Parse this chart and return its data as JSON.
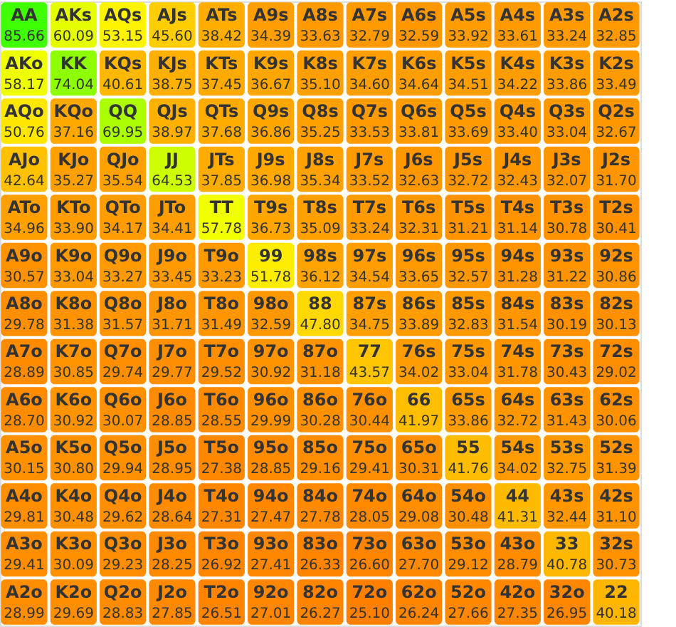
{
  "chart_data": {
    "type": "heatmap",
    "categories": [
      null,
      null,
      null,
      null,
      null,
      null,
      null,
      null,
      null,
      null,
      null,
      null,
      null
    ],
    "y_categories": [
      null,
      null,
      null,
      null,
      null,
      null,
      null,
      null,
      null,
      null,
      null,
      null,
      null
    ],
    "cells": [
      [
        85.66,
        60.09,
        53.15,
        45.6,
        38.42,
        34.39,
        33.63,
        32.79,
        32.59,
        33.92,
        33.61,
        33.24,
        32.85
      ],
      [
        58.17,
        74.04,
        40.61,
        38.75,
        37.45,
        36.67,
        35.1,
        34.6,
        34.64,
        34.51,
        34.22,
        33.86,
        33.49
      ],
      [
        50.76,
        37.16,
        69.95,
        38.97,
        37.68,
        36.86,
        35.25,
        33.53,
        33.81,
        33.69,
        33.4,
        33.04,
        32.67
      ],
      [
        42.64,
        35.27,
        35.54,
        64.53,
        37.85,
        36.98,
        35.34,
        33.52,
        32.63,
        32.72,
        32.43,
        32.07,
        31.7
      ],
      [
        34.96,
        33.9,
        34.17,
        34.41,
        57.78,
        36.73,
        35.09,
        33.24,
        32.31,
        31.21,
        31.14,
        30.78,
        30.41
      ],
      [
        30.57,
        33.04,
        33.27,
        33.45,
        33.23,
        51.78,
        36.12,
        34.54,
        33.65,
        32.57,
        31.28,
        31.22,
        30.86
      ],
      [
        29.78,
        31.38,
        31.57,
        31.71,
        31.49,
        32.59,
        47.8,
        34.75,
        33.89,
        32.83,
        31.54,
        30.19,
        30.13
      ],
      [
        28.89,
        30.85,
        29.74,
        29.77,
        29.52,
        30.92,
        31.18,
        43.57,
        34.02,
        33.04,
        31.78,
        30.43,
        29.02
      ],
      [
        28.7,
        30.92,
        30.07,
        28.85,
        28.55,
        29.99,
        30.28,
        30.44,
        41.97,
        33.86,
        32.72,
        31.43,
        30.06
      ],
      [
        30.15,
        30.8,
        29.94,
        28.95,
        27.38,
        28.85,
        29.16,
        29.41,
        30.31,
        41.76,
        34.02,
        32.75,
        31.39
      ],
      [
        29.81,
        30.48,
        29.62,
        28.64,
        27.31,
        27.47,
        27.78,
        28.05,
        29.08,
        30.48,
        41.31,
        32.44,
        31.1
      ],
      [
        29.41,
        30.09,
        29.23,
        28.25,
        26.92,
        27.41,
        26.33,
        26.6,
        27.7,
        29.12,
        28.79,
        40.78,
        30.73
      ],
      [
        28.99,
        29.69,
        28.83,
        27.85,
        26.51,
        27.01,
        26.27,
        25.1,
        26.24,
        27.66,
        27.35,
        26.95,
        40.18
      ]
    ],
    "cell_labels": [
      [
        "85.66",
        "60.09",
        "53.15",
        "45.60",
        "38.42",
        "34.39",
        "33.63",
        "32.79",
        "32.59",
        "33.92",
        "33.61",
        "33.24",
        "32.85"
      ],
      [
        "58.17",
        "74.04",
        "40.61",
        "38.75",
        "37.45",
        "36.67",
        "35.10",
        "34.60",
        "34.64",
        "34.51",
        "34.22",
        "33.86",
        "33.49"
      ],
      [
        "50.76",
        "37.16",
        "69.95",
        "38.97",
        "37.68",
        "36.86",
        "35.25",
        "33.53",
        "33.81",
        "33.69",
        "33.40",
        "33.04",
        "32.67"
      ],
      [
        "42.64",
        "35.27",
        "35.54",
        "64.53",
        "37.85",
        "36.98",
        "35.34",
        "33.52",
        "32.63",
        "32.72",
        "32.43",
        "32.07",
        "31.70"
      ],
      [
        "34.96",
        "33.90",
        "34.17",
        "34.41",
        "57.78",
        "36.73",
        "35.09",
        "33.24",
        "32.31",
        "31.21",
        "31.14",
        "30.78",
        "30.41"
      ],
      [
        "30.57",
        "33.04",
        "33.27",
        "33.45",
        "33.23",
        "51.78",
        "36.12",
        "34.54",
        "33.65",
        "32.57",
        "31.28",
        "31.22",
        "30.86"
      ],
      [
        "29.78",
        "31.38",
        "31.57",
        "31.71",
        "31.49",
        "32.59",
        "47.80",
        "34.75",
        "33.89",
        "32.83",
        "31.54",
        "30.19",
        "30.13"
      ],
      [
        "28.89",
        "30.85",
        "29.74",
        "29.77",
        "29.52",
        "30.92",
        "31.18",
        "43.57",
        "34.02",
        "33.04",
        "31.78",
        "30.43",
        "29.02"
      ],
      [
        "28.70",
        "30.92",
        "30.07",
        "28.85",
        "28.55",
        "29.99",
        "30.28",
        "30.44",
        "41.97",
        "33.86",
        "32.72",
        "31.43",
        "30.06"
      ],
      [
        "30.15",
        "30.80",
        "29.94",
        "28.95",
        "27.38",
        "28.85",
        "29.16",
        "29.41",
        "30.31",
        "41.76",
        "34.02",
        "32.75",
        "31.39"
      ],
      [
        "29.81",
        "30.48",
        "29.62",
        "28.64",
        "27.31",
        "27.47",
        "27.78",
        "28.05",
        "29.08",
        "30.48",
        "41.31",
        "32.44",
        "31.10"
      ],
      [
        "29.41",
        "30.09",
        "29.23",
        "28.25",
        "26.92",
        "27.41",
        "26.33",
        "26.60",
        "27.70",
        "29.12",
        "28.79",
        "40.78",
        "30.73"
      ],
      [
        "28.99",
        "29.69",
        "28.83",
        "27.85",
        "26.51",
        "27.01",
        "26.27",
        "25.10",
        "26.24",
        "27.66",
        "27.35",
        "26.95",
        "40.18"
      ]
    ],
    "data_labels": true,
    "annotations": [
      "AA",
      "AKs",
      "AQs",
      "AJs",
      "ATs",
      "A9s",
      "A8s",
      "A7s",
      "A6s",
      "A5s",
      "A4s",
      "A3s",
      "A2s",
      "AKo",
      "KK",
      "KQs",
      "KJs",
      "KTs",
      "K9s",
      "K8s",
      "K7s",
      "K6s",
      "K5s",
      "K4s",
      "K3s",
      "K2s",
      "AQo",
      "KQo",
      "QQ",
      "QJs",
      "QTs",
      "Q9s",
      "Q8s",
      "Q7s",
      "Q6s",
      "Q5s",
      "Q4s",
      "Q3s",
      "Q2s",
      "AJo",
      "KJo",
      "QJo",
      "JJ",
      "JTs",
      "J9s",
      "J8s",
      "J7s",
      "J6s",
      "J5s",
      "J4s",
      "J3s",
      "J2s",
      "ATo",
      "KTo",
      "QTo",
      "JTo",
      "TT",
      "T9s",
      "T8s",
      "T7s",
      "T6s",
      "T5s",
      "T4s",
      "T3s",
      "T2s",
      "A9o",
      "K9o",
      "Q9o",
      "J9o",
      "T9o",
      "99",
      "98s",
      "97s",
      "96s",
      "95s",
      "94s",
      "93s",
      "92s",
      "A8o",
      "K8o",
      "Q8o",
      "J8o",
      "T8o",
      "98o",
      "88",
      "87s",
      "86s",
      "85s",
      "84s",
      "83s",
      "82s",
      "A7o",
      "K7o",
      "Q7o",
      "J7o",
      "T7o",
      "97o",
      "87o",
      "77",
      "76s",
      "75s",
      "74s",
      "73s",
      "72s",
      "A6o",
      "K6o",
      "Q6o",
      "J6o",
      "T6o",
      "96o",
      "86o",
      "76o",
      "66",
      "65s",
      "64s",
      "63s",
      "62s",
      "A5o",
      "K5o",
      "Q5o",
      "J5o",
      "T5o",
      "95o",
      "85o",
      "75o",
      "65o",
      "55",
      "54s",
      "53s",
      "52s",
      "A4o",
      "K4o",
      "Q4o",
      "J4o",
      "T4o",
      "94o",
      "84o",
      "74o",
      "64o",
      "54o",
      "44",
      "43s",
      "42s",
      "A3o",
      "K3o",
      "Q3o",
      "J3o",
      "T3o",
      "93o",
      "83o",
      "73o",
      "63o",
      "53o",
      "43o",
      "33",
      "32s",
      "A2o",
      "K2o",
      "Q2o",
      "J2o",
      "T2o",
      "92o",
      "82o",
      "72o",
      "62o",
      "52o",
      "42o",
      "32o",
      "22"
    ]
  }
}
